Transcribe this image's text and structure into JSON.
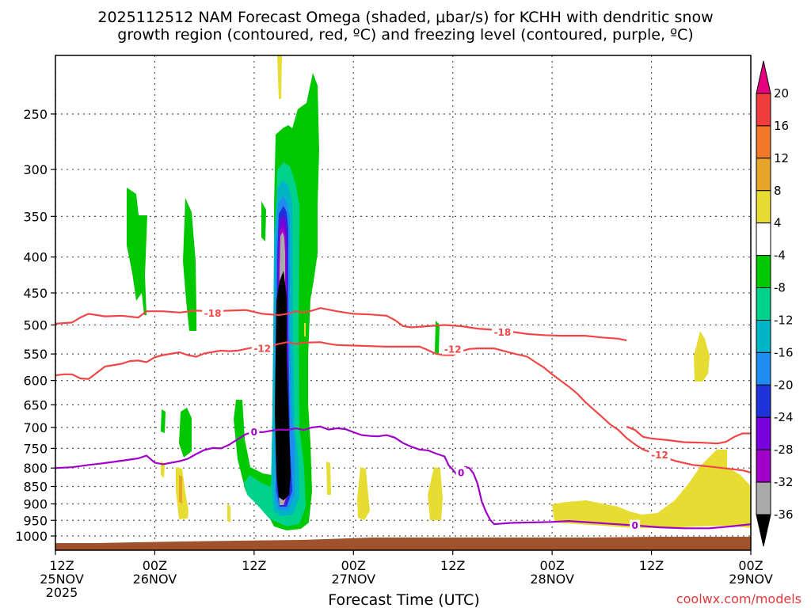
{
  "chart_data": {
    "type": "heatmap",
    "title_line1": "2025112512 NAM Forecast Omega (shaded, μbar/s) for KCHH with dendritic snow",
    "title_line2": "growth region (contoured, red, ºC) and freezing level (contoured, purple, ºC)",
    "xlabel": "Forecast Time (UTC)",
    "credit": "coolwx.com/models",
    "x_ticks": [
      {
        "hour": 0,
        "l1": "12Z",
        "l2": "25NOV",
        "l3": "2025"
      },
      {
        "hour": 12,
        "l1": "00Z",
        "l2": "26NOV",
        "l3": ""
      },
      {
        "hour": 24,
        "l1": "12Z",
        "l2": "",
        "l3": ""
      },
      {
        "hour": 36,
        "l1": "00Z",
        "l2": "27NOV",
        "l3": ""
      },
      {
        "hour": 48,
        "l1": "12Z",
        "l2": "",
        "l3": ""
      },
      {
        "hour": 60,
        "l1": "00Z",
        "l2": "28NOV",
        "l3": ""
      },
      {
        "hour": 72,
        "l1": "12Z",
        "l2": "",
        "l3": ""
      },
      {
        "hour": 84,
        "l1": "00Z",
        "l2": "29NOV",
        "l3": ""
      }
    ],
    "y_ticks": [
      250,
      300,
      350,
      400,
      450,
      500,
      550,
      600,
      650,
      700,
      750,
      800,
      850,
      900,
      950,
      1000
    ],
    "xlim": [
      0,
      84
    ],
    "ylim": [
      1050,
      200
    ],
    "grid": true,
    "colorbar": {
      "levels": [
        20,
        16,
        12,
        8,
        4,
        -4,
        -8,
        -12,
        -16,
        -20,
        -24,
        -28,
        -32,
        -36
      ],
      "colors": [
        "#e6007e",
        "#f03c3c",
        "#f07828",
        "#e6a528",
        "#e6dc32",
        "#ffffff",
        "#00c800",
        "#00d28c",
        "#00b4c8",
        "#1e8cf0",
        "#1e32dc",
        "#7800dc",
        "#a000c8",
        "#aaaaaa",
        "#000000"
      ]
    },
    "contours": {
      "minus18": {
        "label": "-18",
        "color": "#f04646",
        "points": [
          [
            0,
            498
          ],
          [
            2,
            496
          ],
          [
            3,
            488
          ],
          [
            4,
            482
          ],
          [
            6,
            486
          ],
          [
            8,
            485
          ],
          [
            10,
            488
          ],
          [
            11,
            478
          ],
          [
            13,
            478
          ],
          [
            15,
            480
          ],
          [
            17,
            477
          ],
          [
            19,
            478
          ],
          [
            21,
            477
          ],
          [
            23,
            476
          ],
          [
            25,
            482
          ],
          [
            27,
            484
          ],
          [
            28,
            482
          ],
          [
            29,
            478
          ],
          [
            30,
            480
          ],
          [
            31,
            477
          ],
          [
            32,
            473
          ],
          [
            34,
            478
          ],
          [
            36,
            482
          ],
          [
            38,
            483
          ],
          [
            40,
            485
          ],
          [
            41,
            492
          ],
          [
            42,
            502
          ],
          [
            43,
            504
          ],
          [
            45,
            502
          ],
          [
            47,
            500
          ],
          [
            49,
            502
          ],
          [
            51,
            506
          ],
          [
            53,
            508
          ],
          [
            55,
            511
          ],
          [
            57,
            515
          ],
          [
            59,
            517
          ],
          [
            61,
            518
          ],
          [
            64,
            518
          ],
          [
            66,
            521
          ],
          [
            68,
            523
          ],
          [
            69,
            526
          ]
        ]
      },
      "minus12": {
        "label": "-12",
        "color": "#f04646",
        "points": [
          [
            0,
            590
          ],
          [
            1,
            588
          ],
          [
            2,
            588
          ],
          [
            3,
            596
          ],
          [
            4,
            597
          ],
          [
            5,
            585
          ],
          [
            6,
            573
          ],
          [
            8,
            568
          ],
          [
            9,
            563
          ],
          [
            10,
            562
          ],
          [
            11,
            565
          ],
          [
            12,
            556
          ],
          [
            13,
            552
          ],
          [
            15,
            547
          ],
          [
            16,
            552
          ],
          [
            17,
            555
          ],
          [
            18,
            549
          ],
          [
            20,
            544
          ],
          [
            21,
            545
          ],
          [
            22,
            544
          ],
          [
            24,
            538
          ],
          [
            26,
            536
          ],
          [
            27,
            532
          ],
          [
            28,
            529
          ],
          [
            29,
            532
          ],
          [
            30,
            530
          ],
          [
            32,
            529
          ],
          [
            33,
            532
          ],
          [
            34,
            534
          ],
          [
            36,
            535
          ],
          [
            38,
            536
          ],
          [
            40,
            537
          ],
          [
            42,
            537
          ],
          [
            44,
            537
          ],
          [
            45,
            543
          ],
          [
            46,
            550
          ],
          [
            47,
            552
          ],
          [
            48,
            552
          ],
          [
            49,
            545
          ],
          [
            50,
            541
          ],
          [
            51,
            540
          ],
          [
            53,
            540
          ],
          [
            55,
            548
          ],
          [
            57,
            555
          ],
          [
            58,
            565
          ],
          [
            59,
            575
          ],
          [
            60,
            588
          ],
          [
            61,
            600
          ],
          [
            62,
            612
          ],
          [
            63,
            626
          ],
          [
            64,
            644
          ],
          [
            65,
            660
          ],
          [
            66,
            676
          ],
          [
            67,
            693
          ],
          [
            68,
            706
          ],
          [
            69,
            725
          ],
          [
            70,
            740
          ],
          [
            71,
            753
          ],
          [
            72,
            760
          ],
          [
            73,
            769
          ],
          [
            75,
            782
          ],
          [
            77,
            792
          ],
          [
            79,
            796
          ],
          [
            81,
            801
          ],
          [
            83,
            806
          ],
          [
            84,
            812
          ]
        ]
      },
      "minus12b": {
        "label": "-12",
        "color": "#f04646",
        "points": [
          [
            69,
            698
          ],
          [
            70,
            706
          ],
          [
            71,
            722
          ],
          [
            72,
            726
          ],
          [
            74,
            730
          ],
          [
            76,
            735
          ],
          [
            78,
            736
          ],
          [
            80,
            738
          ],
          [
            81,
            734
          ],
          [
            82,
            722
          ],
          [
            83,
            714
          ],
          [
            84,
            714
          ]
        ]
      },
      "freezing": {
        "label": "0",
        "color": "#a000c8",
        "points": [
          [
            0,
            800
          ],
          [
            2,
            798
          ],
          [
            4,
            792
          ],
          [
            6,
            787
          ],
          [
            8,
            781
          ],
          [
            10,
            775
          ],
          [
            11,
            768
          ],
          [
            12,
            786
          ],
          [
            13,
            790
          ],
          [
            15,
            782
          ],
          [
            16,
            776
          ],
          [
            17,
            764
          ],
          [
            18,
            754
          ],
          [
            19,
            749
          ],
          [
            20,
            750
          ],
          [
            21,
            741
          ],
          [
            22,
            728
          ],
          [
            23,
            716
          ],
          [
            24,
            710
          ],
          [
            25,
            711
          ],
          [
            26,
            708
          ],
          [
            27,
            705
          ],
          [
            28,
            706
          ],
          [
            29,
            702
          ],
          [
            30,
            706
          ],
          [
            31,
            700
          ],
          [
            32,
            698
          ],
          [
            33,
            705
          ],
          [
            34,
            702
          ],
          [
            35,
            704
          ],
          [
            36,
            711
          ],
          [
            37,
            718
          ],
          [
            38,
            720
          ],
          [
            39,
            721
          ],
          [
            40,
            718
          ],
          [
            41,
            724
          ],
          [
            42,
            737
          ],
          [
            43,
            746
          ],
          [
            44,
            753
          ],
          [
            45,
            755
          ],
          [
            46,
            763
          ],
          [
            47,
            770
          ],
          [
            47.5,
            793
          ],
          [
            48,
            804
          ],
          [
            48.5,
            818
          ],
          [
            49,
            812
          ],
          [
            49.5,
            797
          ],
          [
            50,
            800
          ],
          [
            50.5,
            814
          ],
          [
            51,
            843
          ],
          [
            51.5,
            893
          ],
          [
            52,
            923
          ],
          [
            52.5,
            948
          ],
          [
            53,
            962
          ],
          [
            55,
            958
          ],
          [
            60,
            955
          ],
          [
            62,
            952
          ],
          [
            66,
            959
          ],
          [
            70,
            966
          ],
          [
            73,
            972
          ],
          [
            76,
            975
          ],
          [
            79,
            975
          ],
          [
            82,
            968
          ],
          [
            84,
            962
          ]
        ]
      }
    }
  }
}
